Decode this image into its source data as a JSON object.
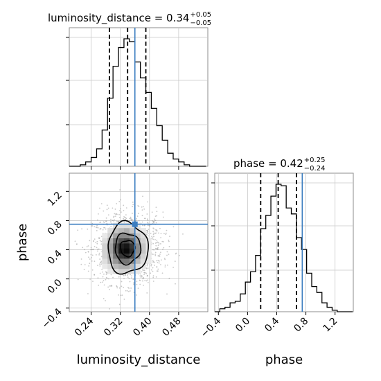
{
  "chart_data": {
    "type": "corner",
    "parameters": [
      "luminosity_distance",
      "phase"
    ],
    "truths": {
      "luminosity_distance": 0.36,
      "phase": 0.75
    },
    "titles": {
      "luminosity_distance": {
        "prefix": "luminosity_distance = 0.34",
        "plus": "+0.05",
        "minus": "−0.05"
      },
      "phase": {
        "prefix": "phase = 0.42",
        "plus": "+0.25",
        "minus": "−0.24"
      }
    },
    "axis_labels": {
      "x_left": "luminosity_distance",
      "x_right": "phase",
      "y_bottom": "phase"
    },
    "ranges": {
      "luminosity_distance": [
        0.18,
        0.56
      ],
      "phase": [
        -0.45,
        1.45
      ]
    },
    "ticks": {
      "luminosity_distance": [
        {
          "v": 0.24,
          "label": "0.24"
        },
        {
          "v": 0.32,
          "label": "0.32"
        },
        {
          "v": 0.4,
          "label": "0.40"
        },
        {
          "v": 0.48,
          "label": "0.48"
        }
      ],
      "phase": [
        {
          "v": -0.4,
          "label": "−0.4"
        },
        {
          "v": 0.0,
          "label": "0.0"
        },
        {
          "v": 0.4,
          "label": "0.4"
        },
        {
          "v": 0.8,
          "label": "0.8"
        },
        {
          "v": 1.2,
          "label": "1.2"
        }
      ]
    },
    "quantiles": {
      "luminosity_distance": [
        0.29,
        0.34,
        0.39
      ],
      "phase": [
        0.18,
        0.42,
        0.67
      ]
    },
    "hist_luminosity_distance": {
      "edges": [
        0.18,
        0.195,
        0.21,
        0.225,
        0.24,
        0.255,
        0.27,
        0.285,
        0.3,
        0.315,
        0.33,
        0.345,
        0.36,
        0.375,
        0.39,
        0.405,
        0.42,
        0.435,
        0.45,
        0.465,
        0.48,
        0.495,
        0.51,
        0.525,
        0.54,
        0.555
      ],
      "counts": [
        0,
        0,
        1,
        3,
        6,
        12,
        25,
        47,
        69,
        82,
        88,
        86,
        72,
        61,
        51,
        40,
        28,
        18,
        9,
        5,
        3,
        1,
        0,
        0,
        0
      ]
    },
    "hist_phase": {
      "edges": [
        -0.45,
        -0.38,
        -0.31,
        -0.24,
        -0.17,
        -0.1,
        -0.03,
        0.04,
        0.11,
        0.18,
        0.25,
        0.32,
        0.39,
        0.46,
        0.53,
        0.6,
        0.67,
        0.74,
        0.81,
        0.88,
        0.95,
        1.02,
        1.09,
        1.16,
        1.23,
        1.3,
        1.37,
        1.44
      ],
      "counts": [
        0,
        2,
        3,
        6,
        7,
        12,
        20,
        27,
        38,
        56,
        65,
        78,
        86,
        85,
        70,
        66,
        50,
        42,
        26,
        17,
        13,
        6,
        3,
        1,
        0,
        0,
        0
      ]
    },
    "contours_2d": {
      "center": {
        "luminosity_distance": 0.34,
        "phase": 0.42
      },
      "levels": [
        {
          "half_width": [
            0.02,
            0.11
          ]
        },
        {
          "half_width": [
            0.035,
            0.21
          ]
        },
        {
          "half_width": [
            0.055,
            0.35
          ]
        }
      ]
    },
    "density_2d": {
      "x_edges": [
        0.27,
        0.285,
        0.3,
        0.315,
        0.33,
        0.345,
        0.36,
        0.375,
        0.39,
        0.405
      ],
      "y_edges": [
        0.07,
        0.14,
        0.21,
        0.28,
        0.35,
        0.42,
        0.49,
        0.56,
        0.63,
        0.7,
        0.77
      ],
      "values": [
        [
          0.0,
          0.05,
          0.1,
          0.15,
          0.15,
          0.1,
          0.05,
          0.0,
          0.0
        ],
        [
          0.05,
          0.1,
          0.25,
          0.3,
          0.3,
          0.25,
          0.1,
          0.05,
          0.0
        ],
        [
          0.1,
          0.25,
          0.4,
          0.55,
          0.55,
          0.45,
          0.25,
          0.1,
          0.05
        ],
        [
          0.15,
          0.3,
          0.55,
          0.8,
          0.85,
          0.7,
          0.4,
          0.15,
          0.05
        ],
        [
          0.15,
          0.35,
          0.65,
          0.95,
          1.0,
          0.85,
          0.45,
          0.2,
          0.05
        ],
        [
          0.15,
          0.35,
          0.7,
          0.9,
          0.95,
          0.8,
          0.45,
          0.2,
          0.05
        ],
        [
          0.1,
          0.3,
          0.55,
          0.7,
          0.75,
          0.6,
          0.35,
          0.15,
          0.05
        ],
        [
          0.05,
          0.15,
          0.35,
          0.45,
          0.45,
          0.4,
          0.2,
          0.1,
          0.0
        ],
        [
          0.0,
          0.1,
          0.2,
          0.25,
          0.3,
          0.2,
          0.1,
          0.05,
          0.0
        ],
        [
          0.0,
          0.0,
          0.1,
          0.1,
          0.1,
          0.1,
          0.05,
          0.0,
          0.0
        ]
      ]
    },
    "scatter_sample": {
      "count": 1400,
      "sigma": [
        0.048,
        0.245
      ]
    },
    "colors": {
      "truth": "#3b7dc0",
      "hist": "#000000",
      "grid": "#c8c8c8",
      "scatter": "#9a9a9a"
    },
    "grid": true
  }
}
